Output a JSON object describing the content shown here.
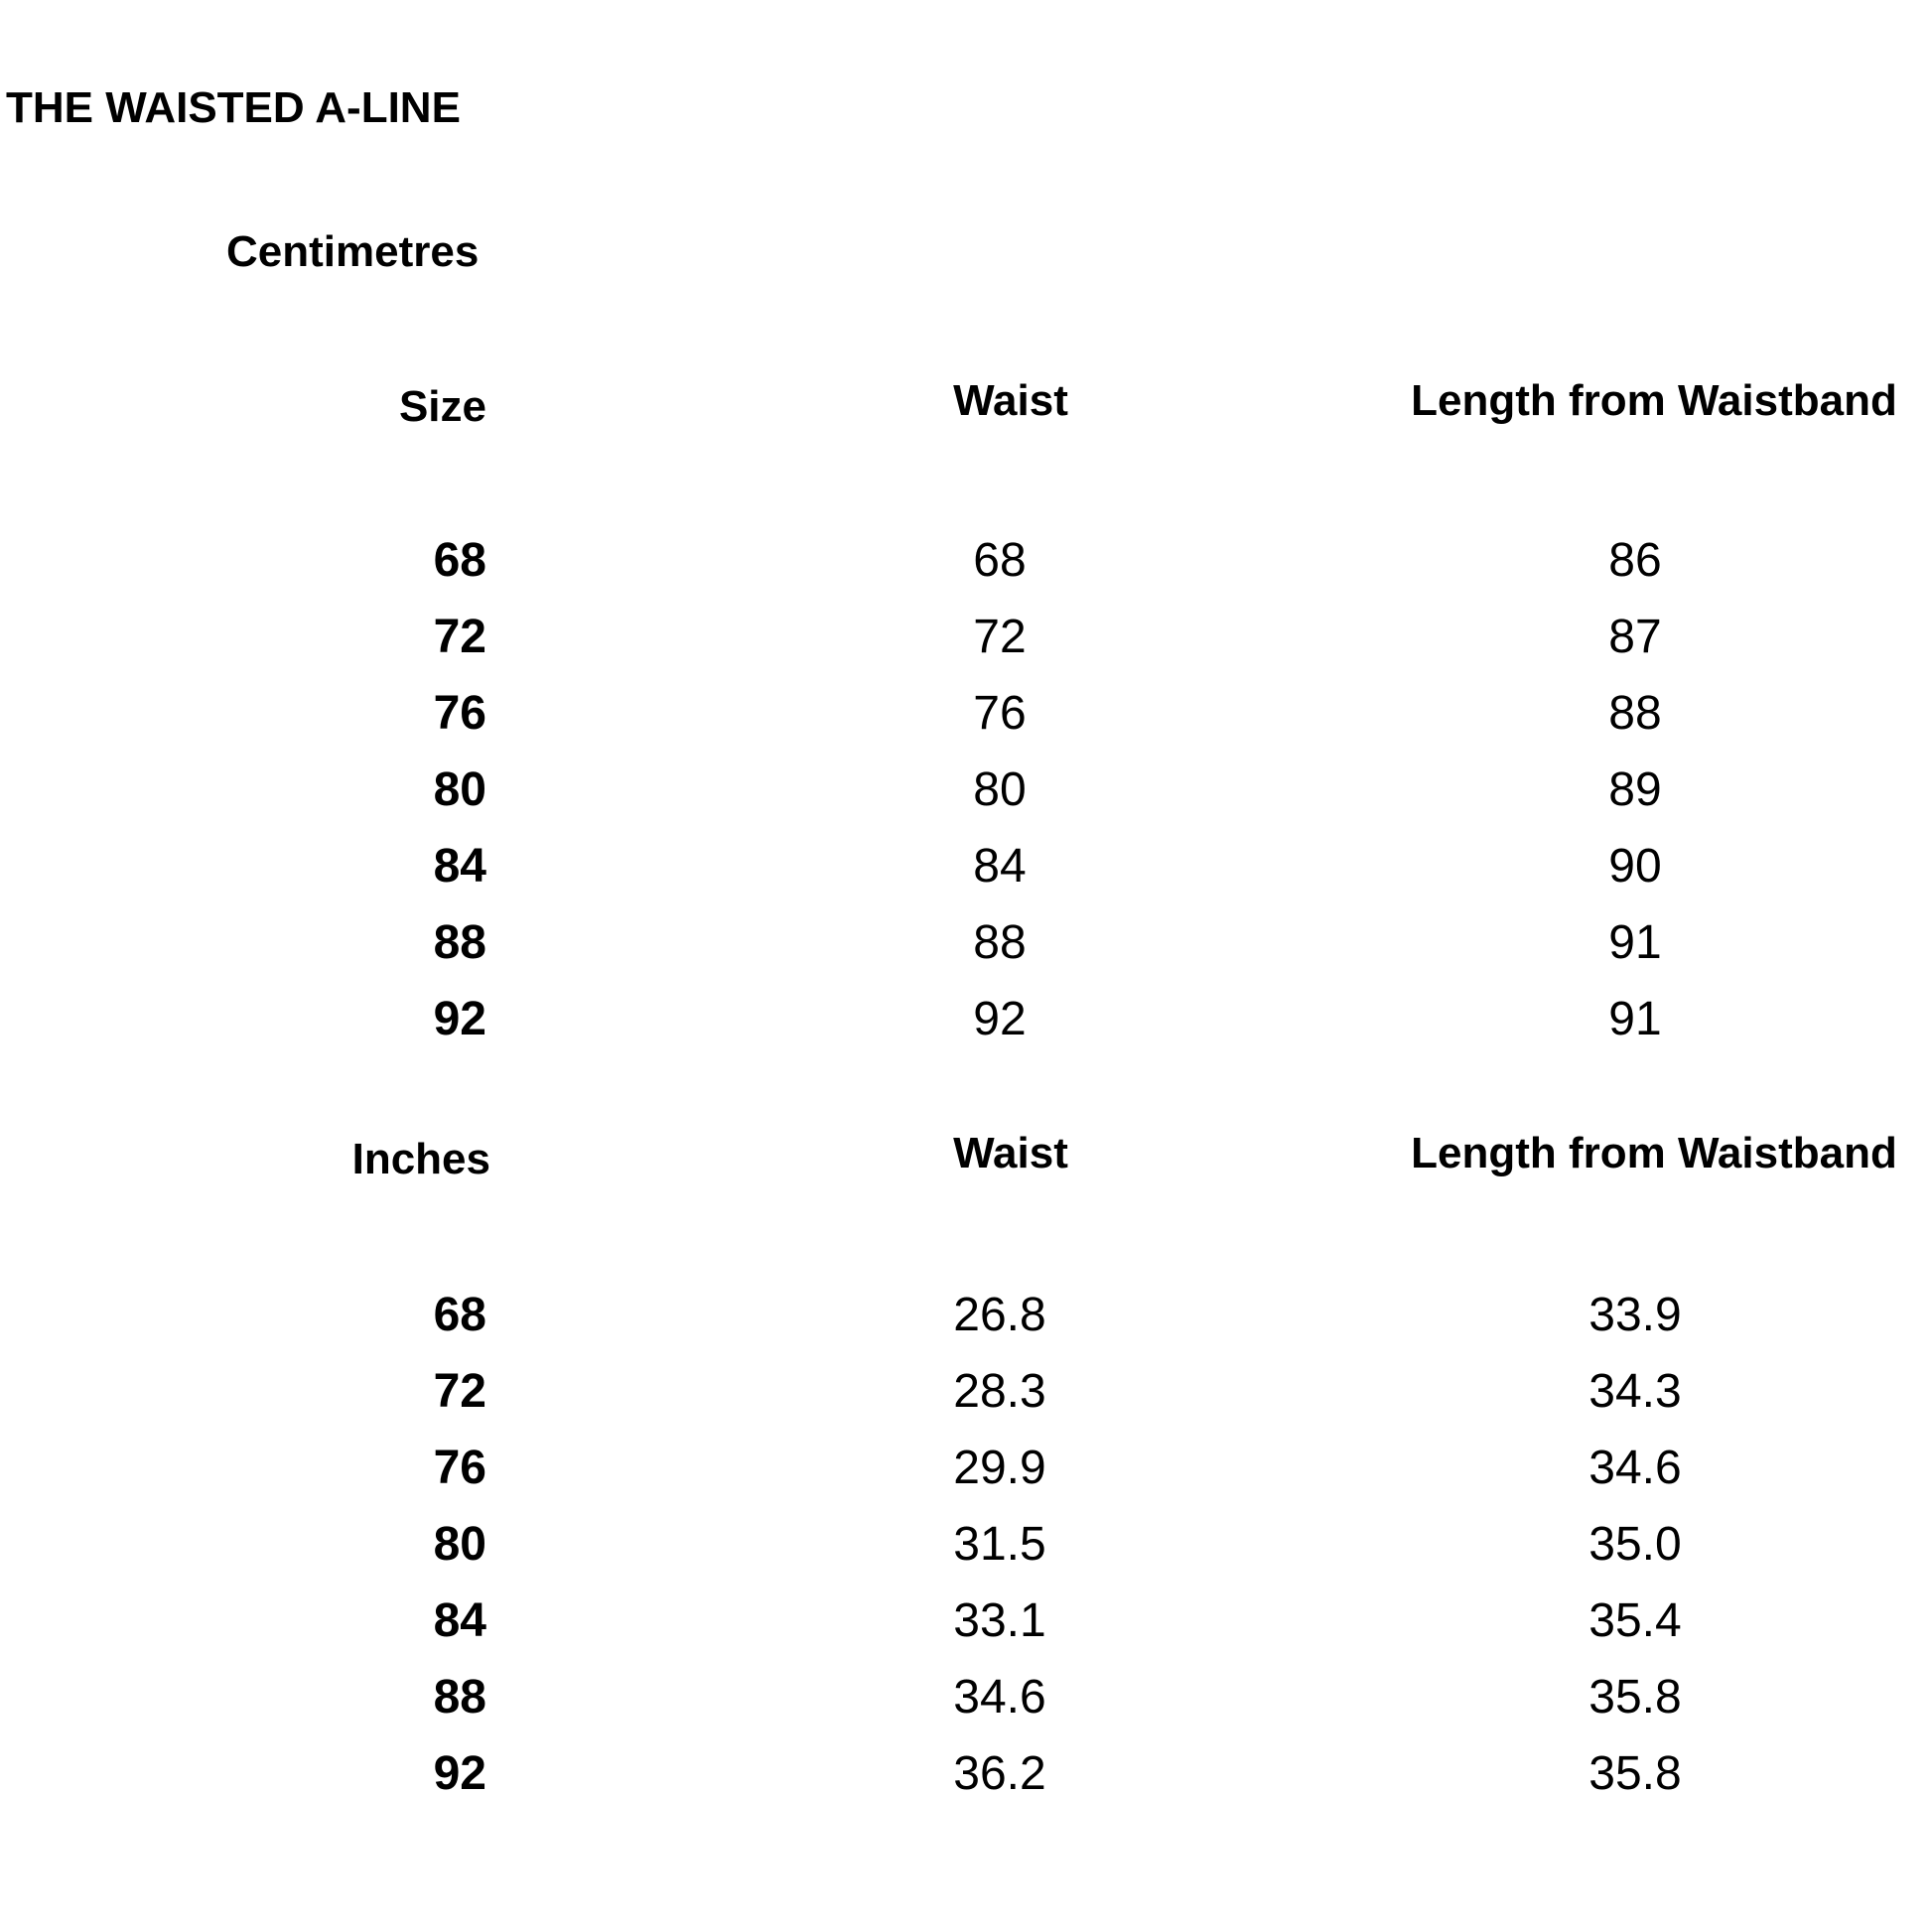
{
  "title": "THE WAISTED A-LINE",
  "centimetres": {
    "section_label": "Centimetres",
    "headers": {
      "size": "Size",
      "waist": "Waist",
      "length": "Length from Waistband"
    },
    "rows": [
      {
        "size": "68",
        "waist": "68",
        "length": "86"
      },
      {
        "size": "72",
        "waist": "72",
        "length": "87"
      },
      {
        "size": "76",
        "waist": "76",
        "length": "88"
      },
      {
        "size": "80",
        "waist": "80",
        "length": "89"
      },
      {
        "size": "84",
        "waist": "84",
        "length": "90"
      },
      {
        "size": "88",
        "waist": "88",
        "length": "91"
      },
      {
        "size": "92",
        "waist": "92",
        "length": "91"
      }
    ]
  },
  "inches": {
    "headers": {
      "size": "Inches",
      "waist": "Waist",
      "length": "Length from Waistband"
    },
    "rows": [
      {
        "size": "68",
        "waist": "26.8",
        "length": "33.9"
      },
      {
        "size": "72",
        "waist": "28.3",
        "length": "34.3"
      },
      {
        "size": "76",
        "waist": "29.9",
        "length": "34.6"
      },
      {
        "size": "80",
        "waist": "31.5",
        "length": "35.0"
      },
      {
        "size": "84",
        "waist": "33.1",
        "length": "35.4"
      },
      {
        "size": "88",
        "waist": "34.6",
        "length": "35.8"
      },
      {
        "size": "92",
        "waist": "36.2",
        "length": "35.8"
      }
    ]
  }
}
